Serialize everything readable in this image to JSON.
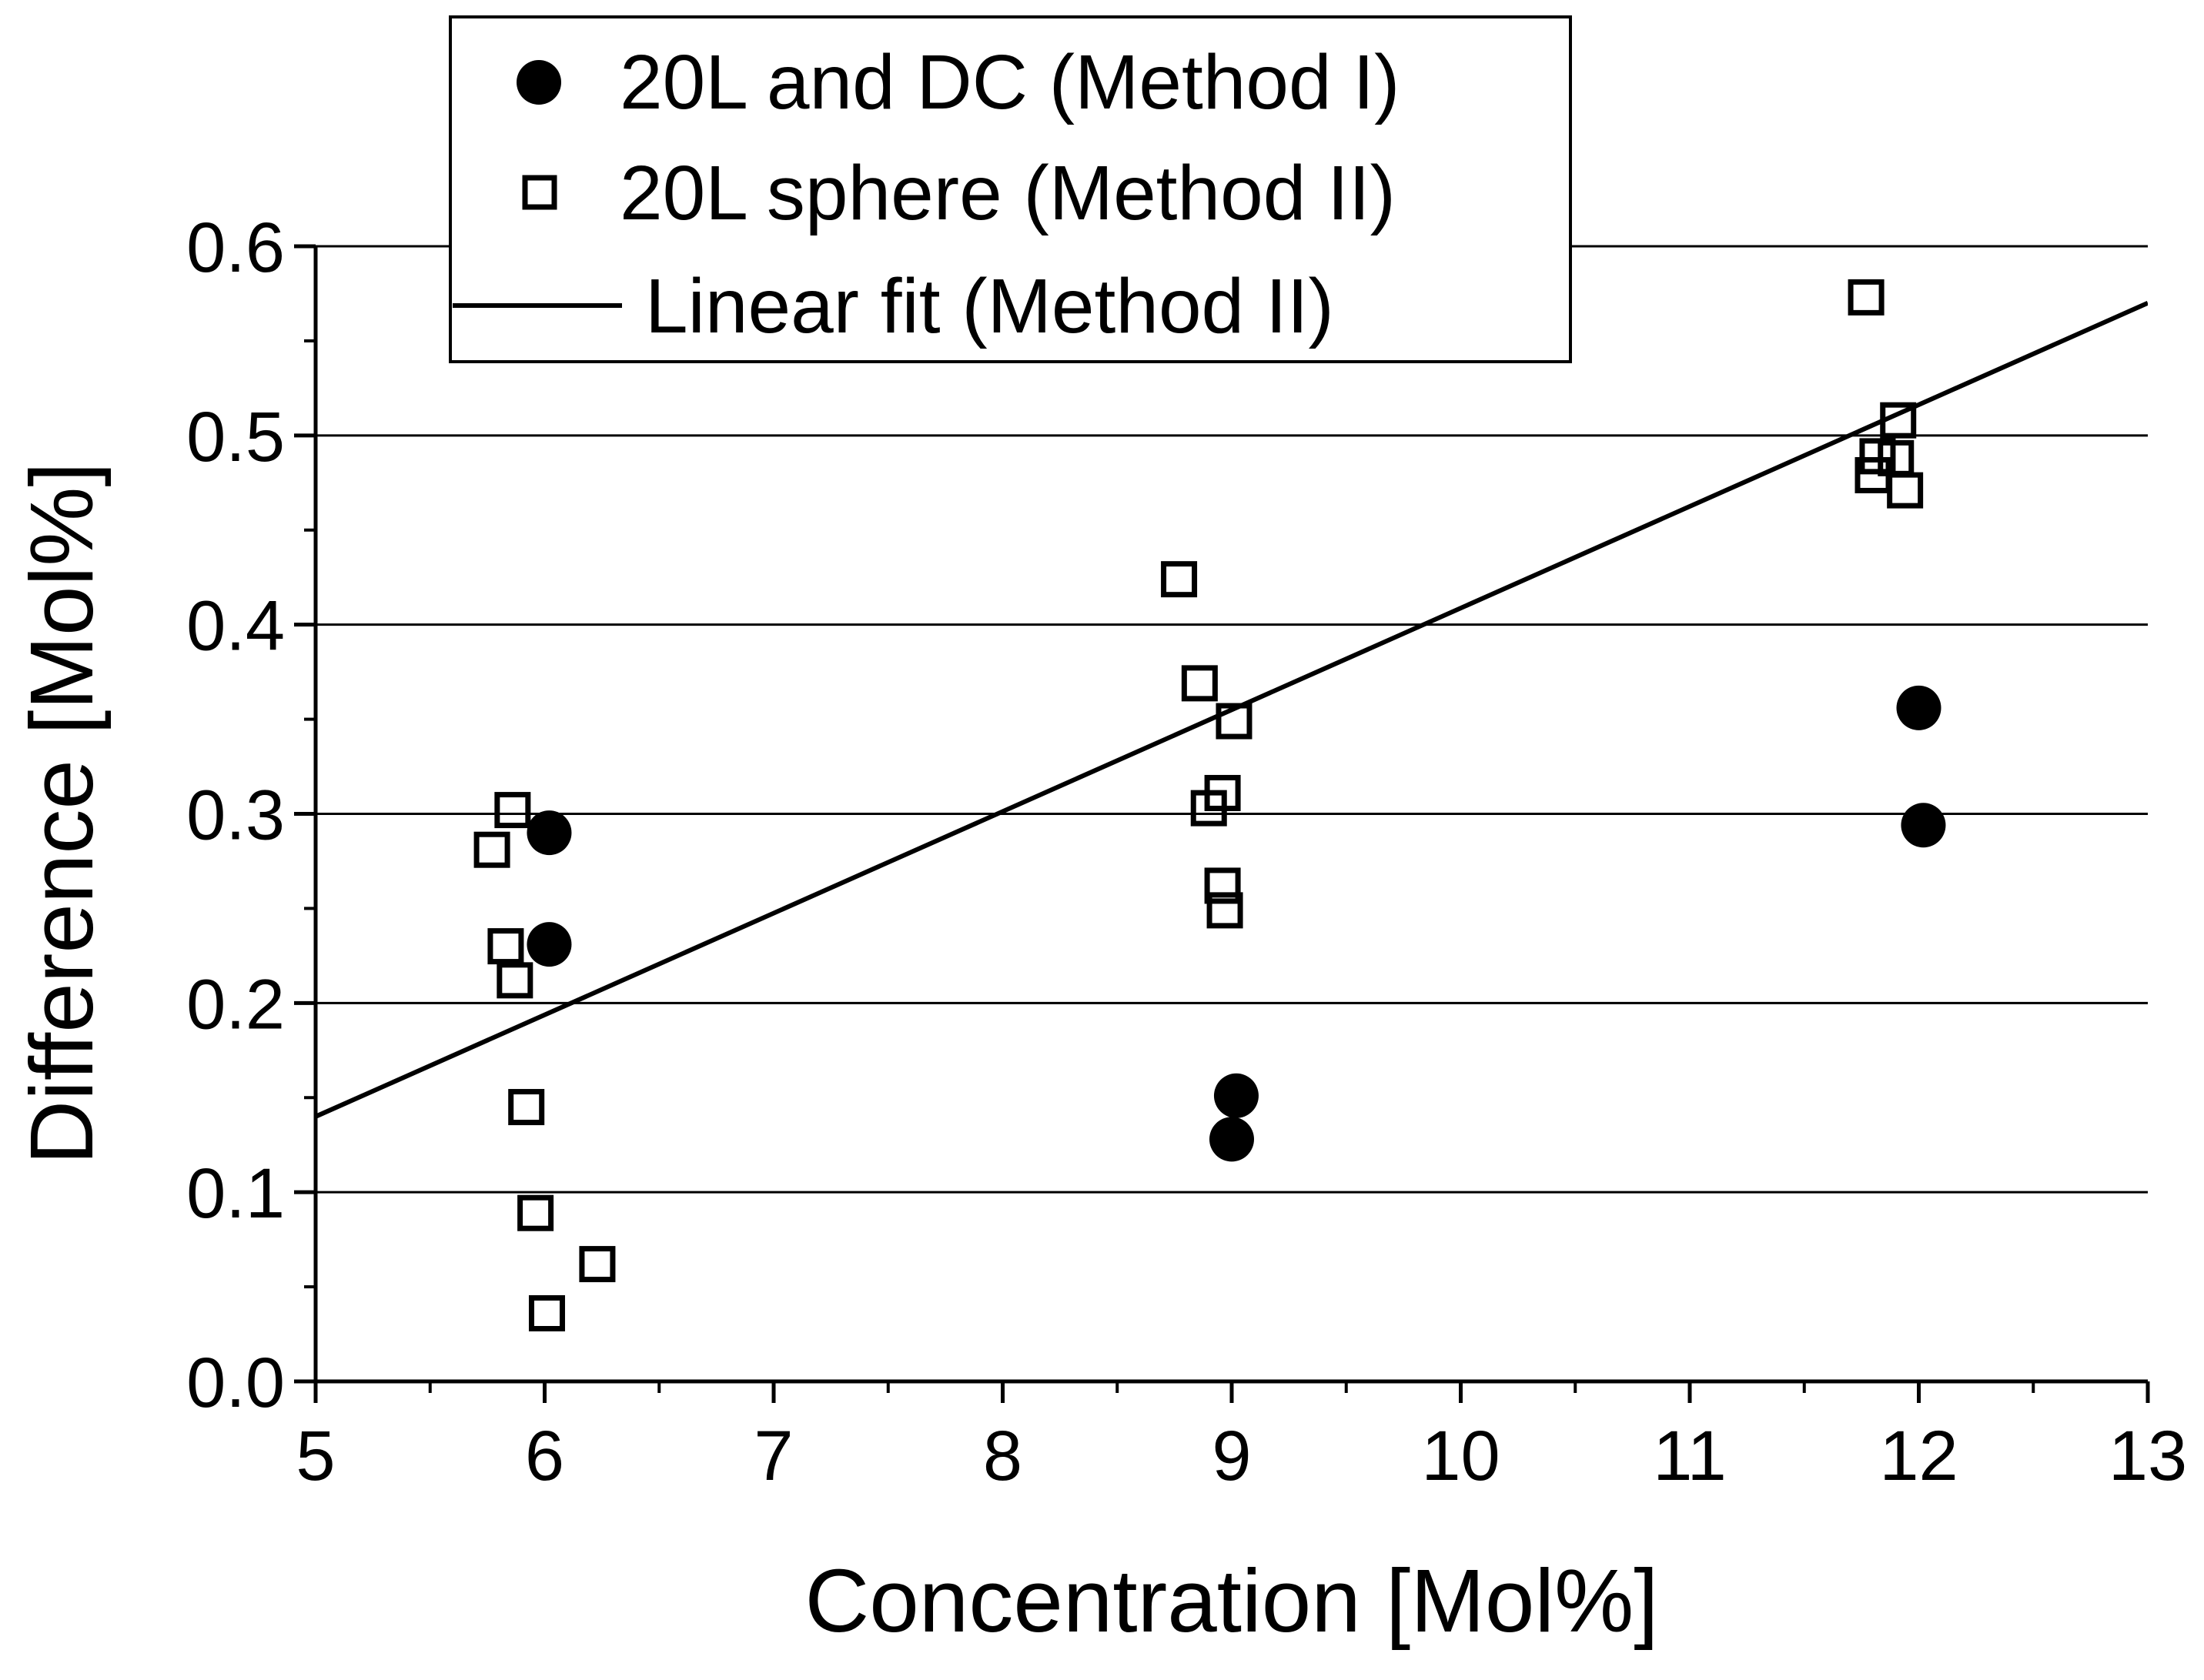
{
  "chart_data": {
    "type": "scatter",
    "title": "",
    "xlabel": "Concentration [Mol%]",
    "ylabel": "Difference [Mol%]",
    "xlim": [
      5,
      13
    ],
    "ylim": [
      0.0,
      0.6
    ],
    "x_ticks": [
      "5",
      "6",
      "7",
      "8",
      "9",
      "10",
      "11",
      "12",
      "13"
    ],
    "y_ticks": [
      "0.0",
      "0.1",
      "0.2",
      "0.3",
      "0.4",
      "0.5",
      "0.6"
    ],
    "grid": "horizontal",
    "legend_position": "top-left",
    "series": [
      {
        "name": "20L and DC (Method I)",
        "marker": "filled-circle",
        "points": [
          [
            6.02,
            0.29
          ],
          [
            6.02,
            0.231
          ],
          [
            9.02,
            0.151
          ],
          [
            9.0,
            0.128
          ],
          [
            12.0,
            0.356
          ],
          [
            12.02,
            0.294
          ]
        ]
      },
      {
        "name": "20L sphere (Method II)",
        "marker": "open-square",
        "points": [
          [
            5.77,
            0.281
          ],
          [
            5.86,
            0.302
          ],
          [
            5.83,
            0.23
          ],
          [
            5.87,
            0.212
          ],
          [
            5.92,
            0.145
          ],
          [
            5.96,
            0.089
          ],
          [
            6.01,
            0.036
          ],
          [
            6.23,
            0.062
          ],
          [
            8.77,
            0.424
          ],
          [
            8.86,
            0.369
          ],
          [
            9.01,
            0.349
          ],
          [
            8.9,
            0.303
          ],
          [
            8.96,
            0.311
          ],
          [
            8.96,
            0.262
          ],
          [
            8.97,
            0.249
          ],
          [
            11.77,
            0.573
          ],
          [
            11.91,
            0.508
          ],
          [
            11.82,
            0.489
          ],
          [
            11.8,
            0.479
          ],
          [
            11.9,
            0.488
          ],
          [
            11.94,
            0.471
          ]
        ]
      },
      {
        "name": "Linear fit (Method II)",
        "type": "line",
        "x": [
          5,
          13
        ],
        "y": [
          0.14,
          0.57
        ]
      }
    ]
  }
}
